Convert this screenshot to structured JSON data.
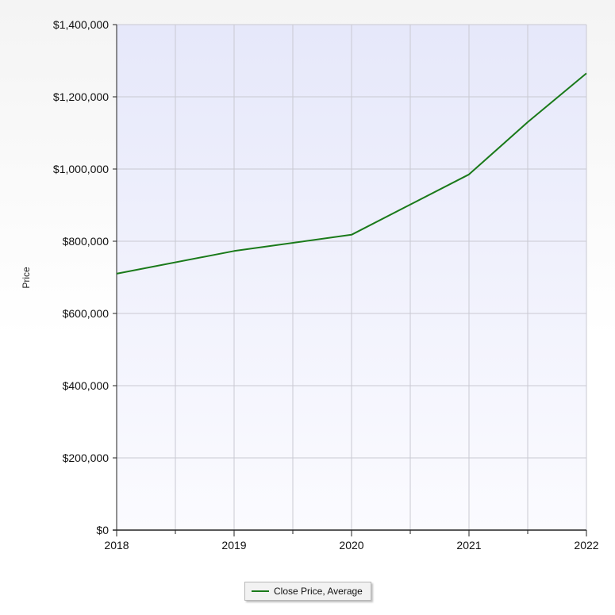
{
  "colors": {
    "plot_top": "#e6e8fa",
    "plot_bottom": "#fbfbff",
    "grid": "#c9c9d2",
    "axis": "#222222",
    "series_line": "#1a7a1a"
  },
  "chart_data": {
    "type": "line",
    "title": "",
    "xlabel": "",
    "ylabel": "Price",
    "x": [
      2018,
      2019,
      2020,
      2021,
      2022
    ],
    "x_tick_labels": [
      "2018",
      "2019",
      "2020",
      "2021",
      "2022"
    ],
    "y_tick_values": [
      0,
      200000,
      400000,
      600000,
      800000,
      1000000,
      1200000,
      1400000
    ],
    "y_tick_labels": [
      "$0",
      "$200,000",
      "$400,000",
      "$600,000",
      "$800,000",
      "$1,000,000",
      "$1,200,000",
      "$1,400,000"
    ],
    "ylim": [
      0,
      1400000
    ],
    "xlim": [
      2018,
      2022
    ],
    "grid": true,
    "legend_position": "bottom-center",
    "series": [
      {
        "name": "Close Price, Average",
        "x": [
          2018,
          2019,
          2020,
          2021,
          2021.5,
          2022
        ],
        "values": [
          710000,
          773000,
          818000,
          985000,
          1130000,
          1265000
        ]
      }
    ]
  },
  "legend": {
    "label": "Close Price, Average"
  }
}
